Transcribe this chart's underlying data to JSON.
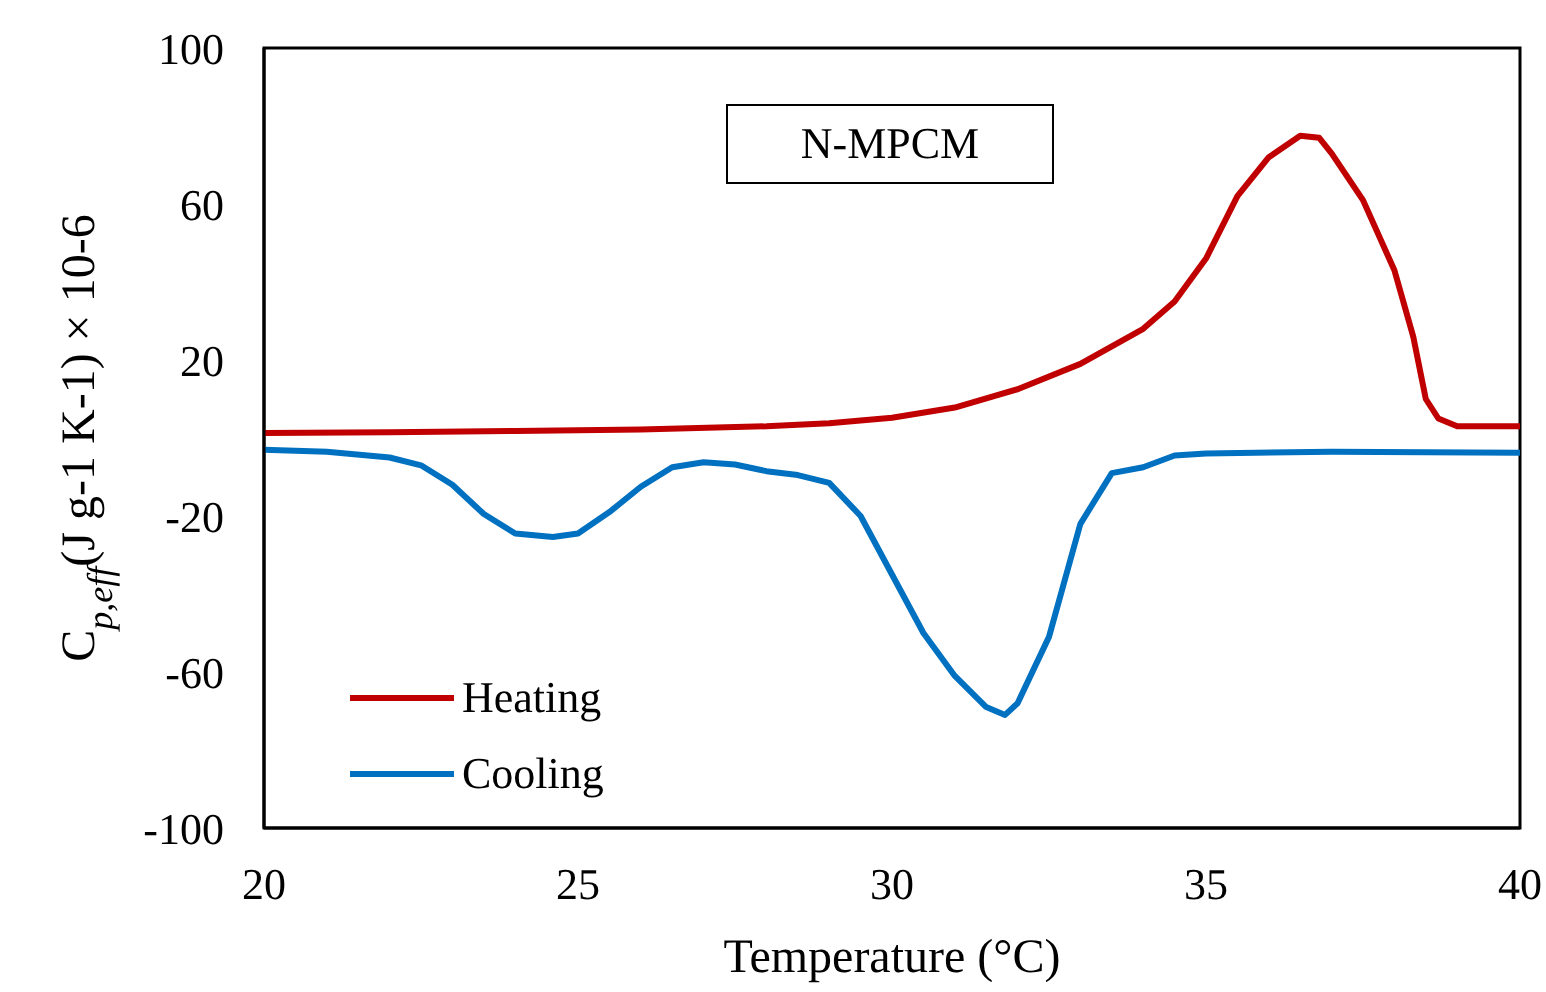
{
  "chart_data": {
    "type": "line",
    "xlabel": "Temperature (°C)",
    "ylabel": "C$_{p,eff}$(J g-1 K-1) × 10-6",
    "annotations": [
      "N-MPCM"
    ],
    "xlim": [
      20,
      40
    ],
    "xticks": [
      20,
      25,
      30,
      35,
      40
    ],
    "ylim": [
      -100,
      100
    ],
    "yticks": [
      -100,
      -60,
      -20,
      20,
      60,
      100
    ],
    "legend": "bottom left",
    "marker": "none",
    "line_style": "solid",
    "series": [
      {
        "name": "Heating",
        "color": "#c00000",
        "x": [
          20,
          22,
          24,
          26,
          28,
          29,
          30,
          31,
          32,
          33,
          34,
          34.5,
          35,
          35.5,
          36,
          36.5,
          36.8,
          37,
          37.5,
          38,
          38.3,
          38.5,
          38.7,
          39,
          40
        ],
        "values": [
          1.3,
          1.5,
          1.8,
          2.2,
          3,
          3.8,
          5.2,
          7.8,
          12.5,
          19,
          28,
          35,
          46,
          62,
          72,
          77.5,
          77,
          73,
          61,
          43,
          26,
          10,
          5,
          3,
          3
        ]
      },
      {
        "name": "Cooling",
        "color": "#0070c0",
        "x": [
          20,
          21,
          22,
          22.5,
          23,
          23.5,
          24,
          24.6,
          25,
          25.5,
          26,
          26.5,
          27,
          27.5,
          28,
          28.5,
          29,
          29.5,
          30,
          30.5,
          31,
          31.5,
          31.8,
          32,
          32.5,
          33,
          33.5,
          34,
          34.5,
          35,
          37,
          40
        ],
        "values": [
          -3,
          -3.5,
          -5,
          -7,
          -12,
          -19.5,
          -24.5,
          -25.4,
          -24.5,
          -19,
          -12.5,
          -7.5,
          -6.2,
          -6.8,
          -8.5,
          -9.5,
          -11.5,
          -20,
          -35,
          -50,
          -61,
          -69,
          -71,
          -68,
          -51,
          -22,
          -9,
          -7.5,
          -4.5,
          -4,
          -3.5,
          -3.8
        ]
      }
    ]
  }
}
